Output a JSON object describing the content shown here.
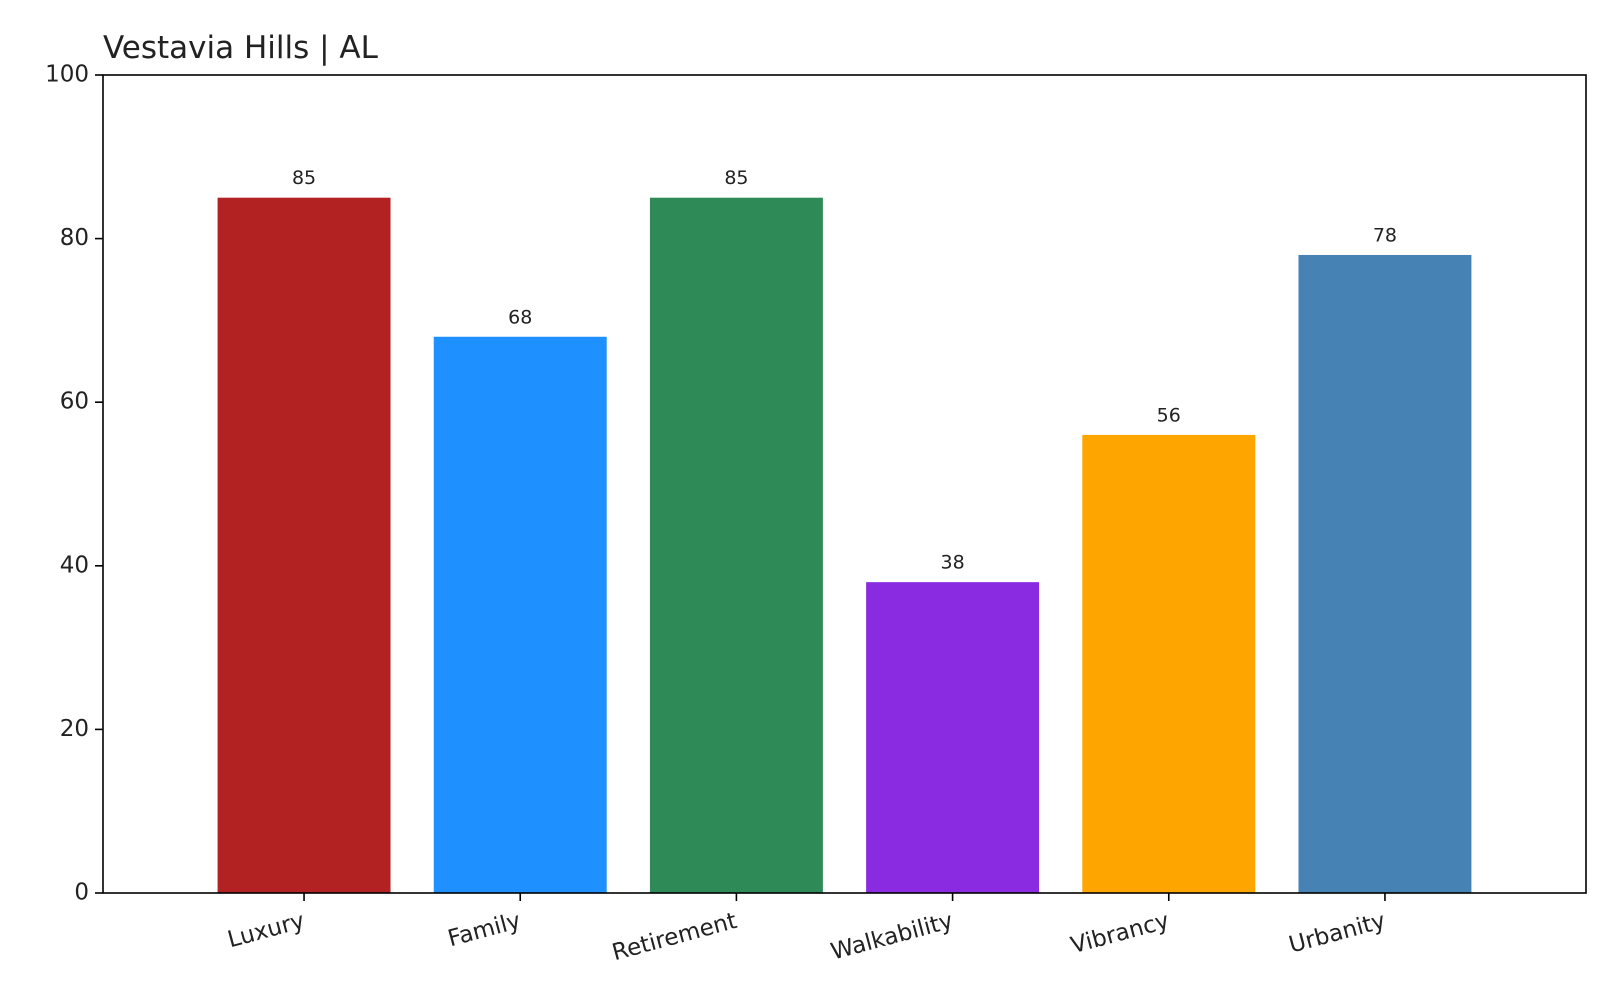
{
  "chart_data": {
    "type": "bar",
    "title": "Vestavia Hills | AL",
    "categories": [
      "Luxury",
      "Family",
      "Retirement",
      "Walkability",
      "Vibrancy",
      "Urbanity"
    ],
    "values": [
      85,
      68,
      85,
      38,
      56,
      78
    ],
    "colors": [
      "#b22222",
      "#1e90ff",
      "#2e8b57",
      "#8a2be2",
      "#ffa500",
      "#4682b4"
    ],
    "ylim": [
      0,
      100
    ],
    "yticks": [
      0,
      20,
      40,
      60,
      80,
      100
    ],
    "grid": false,
    "value_labels_shown": true
  }
}
